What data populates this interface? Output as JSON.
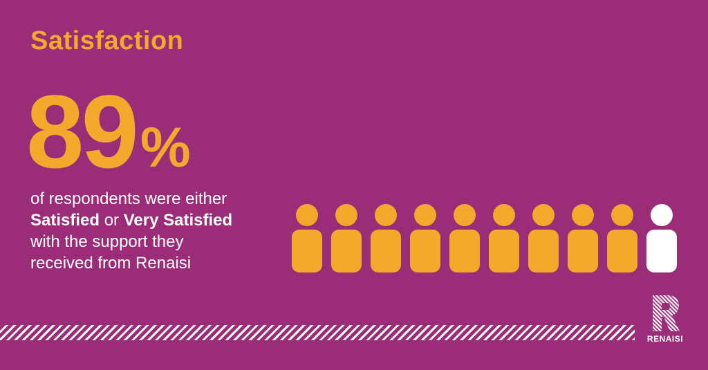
{
  "title": "Satisfaction",
  "statistic": {
    "value": "89",
    "unit": "%"
  },
  "description": {
    "line1": "of respondents were either",
    "bold1": "Satisfied",
    "connector": " or ",
    "bold2": "Very Satisfied",
    "line3": "with the support they",
    "line4": "received from Renaisi"
  },
  "people_chart": {
    "total": 10,
    "filled": 9
  },
  "colors": {
    "background": "#9b2c78",
    "accent": "#f4a82c",
    "empty": "#ffffff"
  },
  "logo": {
    "letter": "R",
    "brand": "RENAISI"
  }
}
